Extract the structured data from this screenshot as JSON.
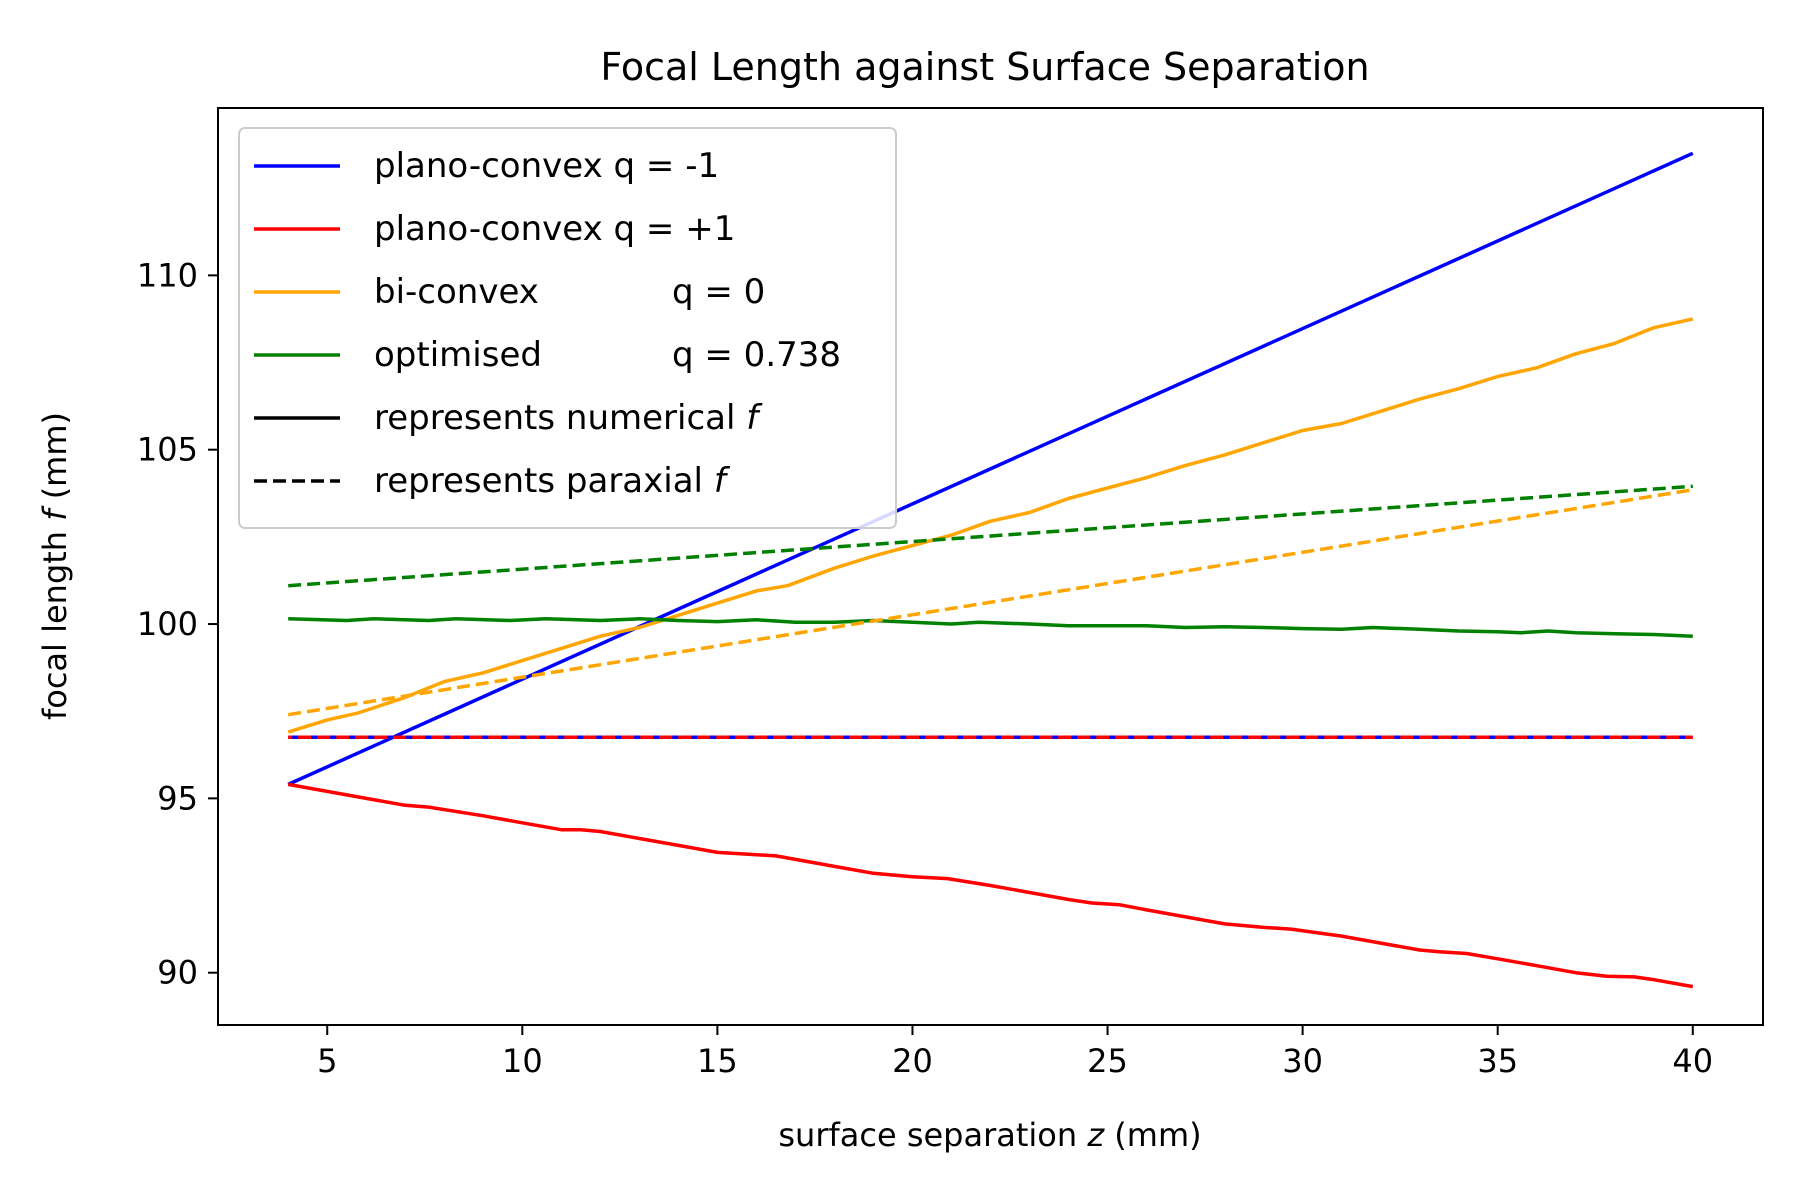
{
  "chart_data": {
    "type": "line",
    "title": "Focal Length against Surface Separation",
    "xlabel_prefix": "surface separation ",
    "xlabel_var": "z",
    "xlabel_suffix": " (mm)",
    "ylabel_prefix": "focal length ",
    "ylabel_var": "f",
    "ylabel_suffix": " (mm)",
    "xlim": [
      2.2,
      41.8
    ],
    "ylim": [
      88.5,
      114.8
    ],
    "xticks": [
      5,
      10,
      15,
      20,
      25,
      30,
      35,
      40
    ],
    "yticks": [
      90,
      95,
      100,
      105,
      110
    ],
    "grid": false,
    "legend_position": "top-left",
    "series": [
      {
        "name": "plano-convex q = -1",
        "legend_left": "plano-convex q = -1",
        "legend_right": "",
        "color": "#0000ff",
        "style": "solid",
        "x": [
          4,
          40
        ],
        "y": [
          95.4,
          113.5
        ]
      },
      {
        "name": "plano-convex q = +1",
        "legend_left": "plano-convex q = +1",
        "legend_right": "",
        "color": "#ff0000",
        "style": "solid",
        "x": [
          4,
          5,
          6,
          7,
          7.6,
          9,
          10,
          11,
          11.5,
          12,
          13,
          14,
          15,
          15.8,
          16.5,
          17,
          18,
          19,
          20,
          20.9,
          22,
          23,
          24,
          24.6,
          25.3,
          26,
          27,
          28,
          29,
          29.7,
          31,
          32,
          33,
          33.5,
          34.2,
          35,
          36,
          37,
          37.8,
          38.5,
          39,
          40
        ],
        "y": [
          95.4,
          95.2,
          95.0,
          94.8,
          94.75,
          94.5,
          94.3,
          94.1,
          94.1,
          94.05,
          93.85,
          93.65,
          93.45,
          93.4,
          93.35,
          93.25,
          93.05,
          92.85,
          92.75,
          92.7,
          92.5,
          92.3,
          92.1,
          92.0,
          91.95,
          91.8,
          91.6,
          91.4,
          91.3,
          91.25,
          91.05,
          90.85,
          90.65,
          90.6,
          90.55,
          90.4,
          90.2,
          90.0,
          89.9,
          89.88,
          89.8,
          89.6
        ]
      },
      {
        "name": "bi-convex q = 0",
        "legend_left": "bi-convex",
        "legend_right": "q = 0",
        "color": "#ffa500",
        "style": "solid",
        "x": [
          4,
          5,
          5.8,
          7,
          8,
          9,
          10,
          11,
          12,
          13,
          14,
          15,
          16,
          16.8,
          18,
          19,
          20,
          21,
          22,
          23,
          24,
          25,
          26,
          27,
          28,
          29,
          30,
          31,
          32,
          33,
          34,
          35,
          36,
          37,
          38,
          39,
          40
        ],
        "y": [
          96.9,
          97.25,
          97.45,
          97.9,
          98.35,
          98.6,
          98.95,
          99.3,
          99.65,
          99.9,
          100.25,
          100.6,
          100.95,
          101.1,
          101.6,
          101.95,
          102.25,
          102.55,
          102.95,
          103.2,
          103.6,
          103.9,
          104.2,
          104.55,
          104.85,
          105.2,
          105.55,
          105.75,
          106.1,
          106.45,
          106.75,
          107.1,
          107.35,
          107.75,
          108.05,
          108.5,
          108.75
        ]
      },
      {
        "name": "optimised q = 0.738",
        "legend_left": "optimised",
        "legend_right": "q = 0.738",
        "color": "#008000",
        "style": "solid",
        "x": [
          4,
          5.5,
          6.2,
          7.6,
          8.3,
          9.7,
          10.6,
          12,
          13,
          14,
          15,
          16,
          17,
          18,
          19,
          20,
          21,
          21.7,
          23,
          24,
          24.7,
          26,
          27,
          28,
          29,
          30,
          31,
          31.8,
          33,
          34,
          35,
          35.6,
          36.3,
          37,
          38,
          39,
          40
        ],
        "y": [
          100.15,
          100.1,
          100.15,
          100.1,
          100.15,
          100.1,
          100.15,
          100.1,
          100.15,
          100.1,
          100.07,
          100.12,
          100.05,
          100.05,
          100.1,
          100.05,
          100.0,
          100.05,
          100.0,
          99.95,
          99.95,
          99.95,
          99.9,
          99.92,
          99.9,
          99.87,
          99.85,
          99.9,
          99.85,
          99.8,
          99.78,
          99.75,
          99.8,
          99.75,
          99.72,
          99.7,
          99.65
        ]
      },
      {
        "name": "plano-convex q = -1 paraxial",
        "legend_left": "",
        "legend_right": "",
        "color": "#0000ff",
        "style": "dashed",
        "x": [
          4,
          40
        ],
        "y": [
          96.75,
          96.75
        ]
      },
      {
        "name": "plano-convex q = +1 paraxial",
        "legend_left": "",
        "legend_right": "",
        "color": "#ff0000",
        "style": "dashed",
        "x": [
          4,
          40
        ],
        "y": [
          96.75,
          96.75
        ]
      },
      {
        "name": "bi-convex q = 0 paraxial",
        "legend_left": "",
        "legend_right": "",
        "color": "#ffa500",
        "style": "dashed",
        "x": [
          4,
          40
        ],
        "y": [
          97.4,
          103.85
        ]
      },
      {
        "name": "optimised q = 0.738 paraxial",
        "legend_left": "",
        "legend_right": "",
        "color": "#008000",
        "style": "dashed",
        "x": [
          4,
          40
        ],
        "y": [
          101.1,
          103.95
        ]
      }
    ],
    "legend": [
      {
        "left": "plano-convex q = -1",
        "right": "",
        "var": "",
        "color": "#0000ff",
        "style": "solid"
      },
      {
        "left": "plano-convex q = +1",
        "right": "",
        "var": "",
        "color": "#ff0000",
        "style": "solid"
      },
      {
        "left": "bi-convex",
        "right": "q = 0",
        "var": "",
        "color": "#ffa500",
        "style": "solid"
      },
      {
        "left": "optimised",
        "right": "q = 0.738",
        "var": "",
        "color": "#008000",
        "style": "solid"
      },
      {
        "left": "represents numerical ",
        "right": "",
        "var": "f",
        "color": "#000000",
        "style": "solid"
      },
      {
        "left": "represents paraxial ",
        "right": "",
        "var": "f",
        "color": "#000000",
        "style": "dashed"
      }
    ]
  }
}
